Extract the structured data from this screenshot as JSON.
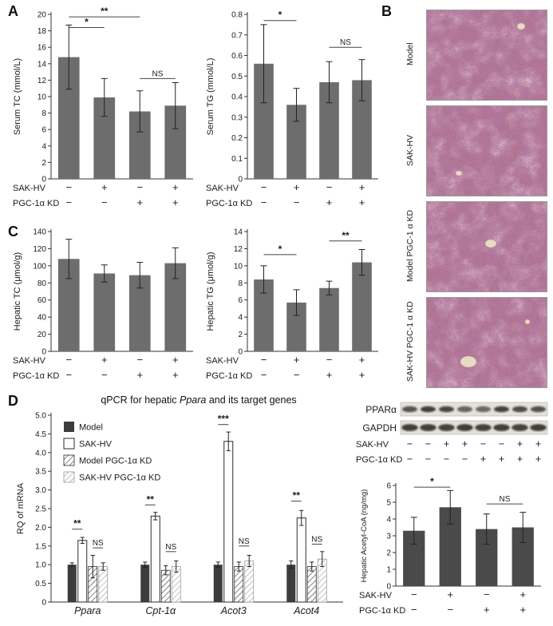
{
  "figure": {
    "panels": {
      "a": {
        "label": "A"
      },
      "b": {
        "label": "B",
        "images": [
          {
            "label": "Model"
          },
          {
            "label": "SAK-HV"
          },
          {
            "label": "Model PGC-1 α KD"
          },
          {
            "label": "SAK-HV PGC-1 α KD"
          }
        ]
      },
      "c": {
        "label": "C"
      },
      "d": {
        "label": "D"
      }
    },
    "colors": {
      "bar_gray": "#6d6d6d",
      "bar_dark": "#4a4a4a",
      "axis": "#333333"
    }
  },
  "blot": {
    "bands": [
      {
        "label": "PPARα"
      },
      {
        "label": "GAPDH"
      }
    ],
    "condition_rows": [
      {
        "label": "SAK-HV",
        "values": [
          "−",
          "−",
          "+",
          "+",
          "−",
          "−",
          "+",
          "+"
        ]
      },
      {
        "label": "PGC-1α KD",
        "values": [
          "−",
          "−",
          "−",
          "−",
          "+",
          "+",
          "+",
          "+"
        ]
      }
    ]
  },
  "chart_data": [
    {
      "id": "serum_tc",
      "type": "bar",
      "ylabel": "Serum TC (mmol/L)",
      "ylim": [
        0,
        20
      ],
      "ytick": 2,
      "values": [
        14.8,
        9.9,
        8.2,
        8.9
      ],
      "errors": [
        3.9,
        2.3,
        2.5,
        2.8
      ],
      "significance": [
        {
          "from": 0,
          "to": 1,
          "label": "*",
          "y": 18.4
        },
        {
          "from": 0,
          "to": 2,
          "label": "**",
          "y": 19.7
        },
        {
          "from": 2,
          "to": 3,
          "label": "NS",
          "y": 12.2
        }
      ],
      "condition_rows": [
        {
          "label": "SAK-HV",
          "values": [
            "−",
            "+",
            "−",
            "+"
          ]
        },
        {
          "label": "PGC-1α KD",
          "values": [
            "−",
            "−",
            "+",
            "+"
          ]
        }
      ]
    },
    {
      "id": "serum_tg",
      "type": "bar",
      "ylabel": "Serum TG (mmol/L)",
      "ylim": [
        0,
        0.8
      ],
      "ytick": 0.1,
      "values": [
        0.56,
        0.36,
        0.47,
        0.48
      ],
      "errors": [
        0.19,
        0.08,
        0.1,
        0.1
      ],
      "significance": [
        {
          "from": 0,
          "to": 1,
          "label": "*",
          "y": 0.77
        },
        {
          "from": 2,
          "to": 3,
          "label": "NS",
          "y": 0.64
        }
      ],
      "condition_rows": [
        {
          "label": "SAK-HV",
          "values": [
            "−",
            "+",
            "−",
            "+"
          ]
        },
        {
          "label": "PGC-1α KD",
          "values": [
            "−",
            "−",
            "+",
            "+"
          ]
        }
      ]
    },
    {
      "id": "hepatic_tc",
      "type": "bar",
      "ylabel": "Hepatic TC (μmol/g)",
      "ylim": [
        0,
        140
      ],
      "ytick": 20,
      "values": [
        108,
        91,
        89,
        103
      ],
      "errors": [
        23,
        10,
        15,
        18
      ],
      "significance": [],
      "condition_rows": [
        {
          "label": "SAK-HV",
          "values": [
            "−",
            "+",
            "−",
            "+"
          ]
        },
        {
          "label": "PGC-1α KD",
          "values": [
            "−",
            "−",
            "+",
            "+"
          ]
        }
      ]
    },
    {
      "id": "hepatic_tg",
      "type": "bar",
      "ylabel": "Hepatic TG (μmol/g)",
      "ylim": [
        0,
        14
      ],
      "ytick": 2,
      "values": [
        8.4,
        5.7,
        7.4,
        10.4
      ],
      "errors": [
        1.6,
        1.5,
        0.8,
        1.5
      ],
      "significance": [
        {
          "from": 0,
          "to": 1,
          "label": "*",
          "y": 11.3
        },
        {
          "from": 2,
          "to": 3,
          "label": "**",
          "y": 12.9
        }
      ],
      "condition_rows": [
        {
          "label": "SAK-HV",
          "values": [
            "−",
            "+",
            "−",
            "+"
          ]
        },
        {
          "label": "PGC-1α KD",
          "values": [
            "−",
            "−",
            "+",
            "+"
          ]
        }
      ]
    },
    {
      "id": "qpcr_rq",
      "type": "grouped_bar",
      "title": "qPCR for hepatic Ppara and its target genes",
      "title_parts": {
        "prefix": "qPCR for hepatic ",
        "italic": "Ppara",
        "suffix": " and its target genes"
      },
      "ylabel": "RQ of mRNA",
      "ylim": [
        0,
        5
      ],
      "ytick": 0.5,
      "categories": [
        "Ppara",
        "Cpt-1α",
        "Acot3",
        "Acot4"
      ],
      "series": [
        {
          "name": "Model",
          "style": "solid",
          "values": [
            1.0,
            1.0,
            1.0,
            1.0
          ],
          "errors": [
            0.05,
            0.07,
            0.07,
            0.1
          ]
        },
        {
          "name": "SAK-HV",
          "style": "open",
          "values": [
            1.65,
            2.3,
            4.3,
            2.25
          ],
          "errors": [
            0.08,
            0.1,
            0.25,
            0.2
          ]
        },
        {
          "name": "Model PGC-1α KD",
          "style": "hatch_dark",
          "values": [
            0.95,
            0.85,
            0.95,
            0.95
          ],
          "errors": [
            0.3,
            0.12,
            0.12,
            0.12
          ]
        },
        {
          "name": "SAK-HV PGC-1α KD",
          "style": "hatch_light",
          "values": [
            0.95,
            0.95,
            1.1,
            1.15
          ],
          "errors": [
            0.1,
            0.15,
            0.15,
            0.2
          ]
        }
      ],
      "legend_position": "top-left-inside",
      "significance": [
        {
          "category": 0,
          "from": 0,
          "to": 1,
          "label": "**",
          "y": 1.95
        },
        {
          "category": 0,
          "from": 2,
          "to": 3,
          "label": "NS",
          "y": 1.45
        },
        {
          "category": 1,
          "from": 0,
          "to": 1,
          "label": "**",
          "y": 2.6
        },
        {
          "category": 1,
          "from": 2,
          "to": 3,
          "label": "NS",
          "y": 1.35
        },
        {
          "category": 2,
          "from": 0,
          "to": 1,
          "label": "***",
          "y": 4.75
        },
        {
          "category": 2,
          "from": 2,
          "to": 3,
          "label": "NS",
          "y": 1.5
        },
        {
          "category": 3,
          "from": 0,
          "to": 1,
          "label": "**",
          "y": 2.7
        },
        {
          "category": 3,
          "from": 2,
          "to": 3,
          "label": "NS",
          "y": 1.55
        }
      ]
    },
    {
      "id": "acetyl_coa",
      "type": "bar",
      "ylabel": "Hepatic Acetyl-CoA (ng/mg)",
      "ylim": [
        0,
        6
      ],
      "ytick": 1,
      "values": [
        3.3,
        4.7,
        3.4,
        3.5
      ],
      "errors": [
        0.8,
        1.0,
        0.9,
        0.9
      ],
      "significance": [
        {
          "from": 0,
          "to": 1,
          "label": "*",
          "y": 5.9
        },
        {
          "from": 2,
          "to": 3,
          "label": "NS",
          "y": 4.9
        }
      ],
      "condition_rows": [
        {
          "label": "SAK-HV",
          "values": [
            "−",
            "+",
            "−",
            "+"
          ]
        },
        {
          "label": "PGC-1α KD",
          "values": [
            "−",
            "−",
            "+",
            "+"
          ]
        }
      ]
    }
  ]
}
